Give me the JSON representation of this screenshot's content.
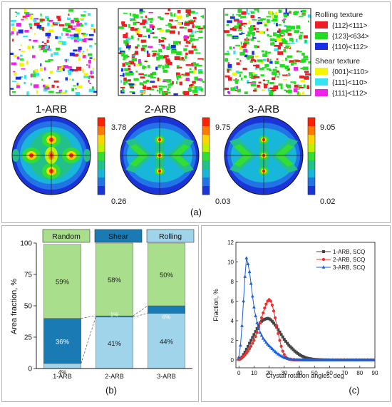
{
  "panel_a": {
    "panel_label": "(a)",
    "legend": {
      "rolling_title": "Rolling texture",
      "rolling_items": [
        {
          "label": "{112}<111>",
          "color": "#ee1c24"
        },
        {
          "label": "{123}<634>",
          "color": "#22dd22"
        },
        {
          "label": "{110}<112>",
          "color": "#1a2fe0"
        }
      ],
      "shear_title": "Shear texture",
      "shear_items": [
        {
          "label": "{001}<110>",
          "color": "#f5f500"
        },
        {
          "label": "{111}<110>",
          "color": "#33e5f0"
        },
        {
          "label": "{111}<112>",
          "color": "#ee22e8"
        }
      ]
    },
    "samples": [
      {
        "name": "1-ARB",
        "scale_max": "3.78",
        "scale_min": "0.26"
      },
      {
        "name": "2-ARB",
        "scale_max": "9.75",
        "scale_min": "0.03"
      },
      {
        "name": "3-ARB",
        "scale_max": "9.05",
        "scale_min": "0.02"
      }
    ],
    "colormap": [
      "#ff2000",
      "#ff7a00",
      "#ffd400",
      "#bff000",
      "#33dd33",
      "#22c08a",
      "#18b6d8",
      "#2274e6",
      "#1a34d8"
    ]
  },
  "chart_data": [
    {
      "type": "bar",
      "panel_label": "(b)",
      "stacked": true,
      "categories": [
        "1-ARB",
        "2-ARB",
        "3-ARB"
      ],
      "series": [
        {
          "name": "Rolling",
          "values": [
            4,
            41,
            44
          ],
          "labels": [
            "4%",
            "41%",
            "44%"
          ],
          "color": "#9fd4ea"
        },
        {
          "name": "Shear",
          "values": [
            36,
            1,
            6
          ],
          "labels": [
            "36%",
            "1%",
            "6%"
          ],
          "color": "#1a7ab4"
        },
        {
          "name": "Random",
          "values": [
            59,
            58,
            50
          ],
          "labels": [
            "59%",
            "58%",
            "50%"
          ],
          "color": "#a8de8c"
        }
      ],
      "ylabel": "Area fraction, %",
      "ylim": [
        0,
        100
      ],
      "yticks": [
        0,
        25,
        50,
        75,
        100
      ],
      "legend_position": "top"
    },
    {
      "type": "line",
      "panel_label": "(c)",
      "xlabel": "Crystal rotation angles, deg",
      "ylabel": "Fraction, %",
      "xlim": [
        -2,
        90
      ],
      "ylim": [
        -0.8,
        12
      ],
      "xticks": [
        0,
        10,
        20,
        30,
        40,
        50,
        60,
        70,
        80,
        90
      ],
      "yticks": [
        0,
        2,
        4,
        6,
        8,
        10,
        12
      ],
      "legend_position": "top-right",
      "x": [
        0,
        1,
        2,
        3,
        4,
        5,
        6,
        7,
        8,
        9,
        10,
        11,
        12,
        13,
        14,
        15,
        16,
        17,
        18,
        19,
        20,
        21,
        22,
        23,
        24,
        25,
        26,
        27,
        28,
        29,
        30,
        31,
        32,
        33,
        34,
        35,
        36,
        37,
        38,
        39,
        40,
        41,
        42,
        43,
        44,
        45,
        46,
        47,
        48,
        49,
        50,
        51,
        52,
        53,
        54,
        55,
        56,
        57,
        58,
        59,
        60,
        61,
        62,
        63,
        64,
        65,
        66,
        67,
        68,
        69,
        70,
        71,
        72,
        73,
        74,
        75,
        76,
        77,
        78,
        79,
        80,
        81,
        82,
        83,
        84,
        85,
        86,
        87,
        88,
        89,
        90
      ],
      "series": [
        {
          "name": "1-ARB, SCQ",
          "marker": "square",
          "color": "#444444",
          "values": [
            0.05,
            0.15,
            0.3,
            0.55,
            0.8,
            1.1,
            1.4,
            1.7,
            2.0,
            2.3,
            2.6,
            2.9,
            3.2,
            3.5,
            3.8,
            3.95,
            4.05,
            4.15,
            4.2,
            4.25,
            4.2,
            4.1,
            3.95,
            3.75,
            3.55,
            3.35,
            3.1,
            2.85,
            2.6,
            2.35,
            2.1,
            1.9,
            1.7,
            1.5,
            1.35,
            1.2,
            1.05,
            0.9,
            0.78,
            0.66,
            0.55,
            0.46,
            0.38,
            0.31,
            0.25,
            0.2,
            0.16,
            0.13,
            0.1,
            0.08,
            0.06,
            0.05,
            0.04,
            0.03,
            0.02,
            0.02,
            0.01,
            0.01,
            0.01,
            0.01,
            0.0,
            0.0,
            0.0,
            0.0,
            0.0,
            0.0,
            0.0,
            0.0,
            0.0,
            0.0,
            0.0,
            0.0,
            0.0,
            0.0,
            0.0,
            0.0,
            0.0,
            0.0,
            0.0,
            0.0,
            0.0,
            0.0,
            0.0,
            0.0,
            0.0,
            0.0,
            0.0,
            0.0,
            0.0,
            0.0,
            0.0
          ]
        },
        {
          "name": "2-ARB, SCQ",
          "marker": "circle",
          "color": "#ee2d2d",
          "values": [
            0.05,
            0.1,
            0.2,
            0.35,
            0.5,
            0.7,
            0.9,
            1.15,
            1.4,
            1.7,
            2.0,
            2.4,
            2.8,
            3.3,
            3.8,
            4.3,
            4.8,
            5.3,
            5.7,
            6.0,
            6.15,
            6.0,
            5.6,
            5.0,
            4.3,
            3.5,
            2.7,
            2.0,
            1.4,
            0.9,
            0.55,
            0.3,
            0.15,
            0.08,
            0.04,
            0.02,
            0.01,
            0.0,
            0.0,
            0.0,
            0.0,
            0.0,
            0.0,
            0.0,
            0.0,
            0.0,
            0.0,
            0.0,
            0.0,
            0.0,
            0.0,
            0.0,
            0.0,
            0.0,
            0.0,
            0.0,
            0.0,
            0.0,
            0.0,
            0.0,
            0.0,
            0.0,
            0.0,
            0.0,
            0.0,
            0.0,
            0.0,
            0.0,
            0.0,
            0.0,
            0.0,
            0.0,
            0.0,
            0.0,
            0.0,
            0.0,
            0.0,
            0.0,
            0.0,
            0.0,
            0.0,
            0.0,
            0.0,
            0.0,
            0.0,
            0.0,
            0.0,
            0.0,
            0.0,
            0.0,
            0.0
          ]
        },
        {
          "name": "3-ARB, SCQ",
          "marker": "triangle",
          "color": "#1c5fd8",
          "values": [
            0.3,
            1.5,
            3.5,
            6.0,
            8.5,
            10.4,
            9.8,
            9.0,
            7.8,
            6.5,
            5.4,
            4.5,
            3.8,
            3.2,
            2.8,
            2.5,
            2.2,
            2.0,
            1.8,
            1.6,
            1.45,
            1.3,
            1.15,
            1.0,
            0.85,
            0.72,
            0.6,
            0.5,
            0.4,
            0.32,
            0.25,
            0.2,
            0.15,
            0.12,
            0.09,
            0.07,
            0.05,
            0.04,
            0.03,
            0.02,
            0.02,
            0.01,
            0.01,
            0.01,
            0.0,
            0.0,
            0.0,
            0.0,
            0.0,
            0.0,
            0.0,
            0.0,
            0.0,
            0.0,
            0.0,
            0.0,
            0.0,
            0.0,
            0.0,
            0.0,
            0.0,
            0.0,
            0.0,
            0.0,
            0.0,
            0.0,
            0.0,
            0.0,
            0.0,
            0.0,
            0.0,
            0.0,
            0.0,
            0.0,
            0.0,
            0.0,
            0.0,
            0.0,
            0.0,
            0.0,
            0.0,
            0.0,
            0.0,
            0.0,
            0.0,
            0.0,
            0.0,
            0.0,
            0.0,
            0.0,
            0.0
          ]
        }
      ]
    }
  ]
}
